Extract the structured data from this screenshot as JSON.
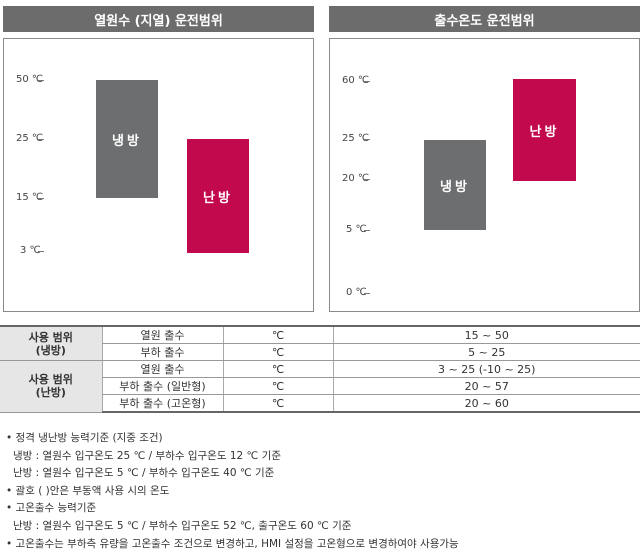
{
  "left_panel": {
    "title": "열원수 (지열) 운전범위",
    "ticks": [
      {
        "label": "50 ℃",
        "value": 50
      },
      {
        "label": "25 ℃",
        "value": 25
      },
      {
        "label": "15 ℃",
        "value": 15
      },
      {
        "label": "3 ℃",
        "value": 3
      }
    ],
    "cooling": {
      "label": "냉방",
      "range": [
        15,
        50
      ]
    },
    "heating": {
      "label": "난방",
      "range": [
        3,
        25
      ]
    }
  },
  "right_panel": {
    "title": "출수온도 운전범위",
    "ticks": [
      {
        "label": "60 ℃",
        "value": 60
      },
      {
        "label": "25 ℃",
        "value": 25
      },
      {
        "label": "20 ℃",
        "value": 20
      },
      {
        "label": "5 ℃",
        "value": 5
      },
      {
        "label": "0 ℃",
        "value": 0
      }
    ],
    "cooling": {
      "label": "냉방",
      "range": [
        5,
        25
      ]
    },
    "heating": {
      "label": "난방",
      "range": [
        20,
        60
      ]
    }
  },
  "table": {
    "groups": [
      {
        "category": [
          "사용 범위",
          "(냉방)"
        ],
        "rows": [
          {
            "item": "열원 출수",
            "unit": "℃",
            "value": "15 ~ 50"
          },
          {
            "item": "부하 출수",
            "unit": "℃",
            "value": "5 ~ 25"
          }
        ]
      },
      {
        "category": [
          "사용 범위",
          "(난방)"
        ],
        "rows": [
          {
            "item": "열원 출수",
            "unit": "℃",
            "value": "3 ~ 25 (-10 ~ 25)"
          },
          {
            "item": "부하 출수 (일반형)",
            "unit": "℃",
            "value": "20 ~ 57"
          },
          {
            "item": "부하 출수 (고온형)",
            "unit": "℃",
            "value": "20 ~ 60"
          }
        ]
      }
    ]
  },
  "notes": [
    {
      "bullet": true,
      "text": "정격 냉난방 능력기준 (지중 조건)"
    },
    {
      "bullet": false,
      "text": "냉방 : 열원수 입구온도 25 ℃ / 부하수 입구온도 12 ℃ 기준"
    },
    {
      "bullet": false,
      "text": "난방 : 열원수 입구온도 5 ℃ / 부하수 입구온도 40 ℃ 기준"
    },
    {
      "bullet": true,
      "text": "괄호 (   )안은 부동액 사용 시의 온도"
    },
    {
      "bullet": true,
      "text": "고온출수 능력기준"
    },
    {
      "bullet": false,
      "text": "난방 : 열원수 입구온도 5 ℃ / 부하수 입구온도 52 ℃, 출구온도 60 ℃ 기준"
    },
    {
      "bullet": true,
      "text": "고온출수는 부하측 유량을 고온출수 조건으로 변경하고, HMI 설정을 고온형으로 변경하여야 사용가능"
    }
  ]
}
